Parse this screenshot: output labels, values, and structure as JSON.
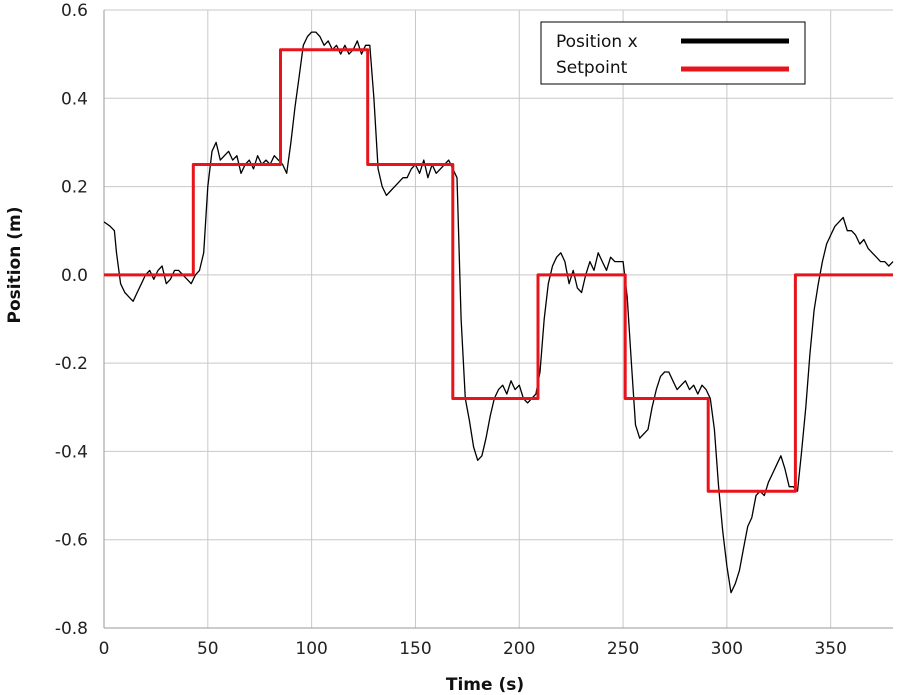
{
  "chart_data": {
    "type": "line",
    "title": "",
    "xlabel": "Time (s)",
    "ylabel": "Position (m)",
    "xlim": [
      0,
      380
    ],
    "ylim": [
      -0.8,
      0.6
    ],
    "x_ticks": [
      0,
      50,
      100,
      150,
      200,
      250,
      300,
      350
    ],
    "x_tick_labels": [
      "0",
      "50",
      "100",
      "150",
      "200",
      "250",
      "300",
      "350"
    ],
    "y_ticks": [
      0.6,
      0.4,
      0.2,
      0.0,
      -0.2,
      -0.4,
      -0.6,
      -0.8
    ],
    "y_tick_labels": [
      "0.6",
      "0.4",
      "0.2",
      "0.0",
      "-0.2",
      "-0.4",
      "-0.6",
      "-0.8"
    ],
    "grid": true,
    "legend_position": "top-right",
    "series": [
      {
        "name": "Position x",
        "color": "#000000",
        "points": [
          [
            0,
            0.12
          ],
          [
            3,
            0.11
          ],
          [
            5,
            0.1
          ],
          [
            6,
            0.05
          ],
          [
            8,
            -0.02
          ],
          [
            10,
            -0.04
          ],
          [
            12,
            -0.05
          ],
          [
            14,
            -0.06
          ],
          [
            16,
            -0.04
          ],
          [
            18,
            -0.02
          ],
          [
            20,
            0.0
          ],
          [
            22,
            0.01
          ],
          [
            24,
            -0.01
          ],
          [
            26,
            0.01
          ],
          [
            28,
            0.02
          ],
          [
            30,
            -0.02
          ],
          [
            32,
            -0.01
          ],
          [
            34,
            0.01
          ],
          [
            36,
            0.01
          ],
          [
            38,
            0.0
          ],
          [
            40,
            -0.01
          ],
          [
            42,
            -0.02
          ],
          [
            44,
            0.0
          ],
          [
            46,
            0.01
          ],
          [
            48,
            0.05
          ],
          [
            50,
            0.2
          ],
          [
            52,
            0.28
          ],
          [
            54,
            0.3
          ],
          [
            56,
            0.26
          ],
          [
            58,
            0.27
          ],
          [
            60,
            0.28
          ],
          [
            62,
            0.26
          ],
          [
            64,
            0.27
          ],
          [
            66,
            0.23
          ],
          [
            68,
            0.25
          ],
          [
            70,
            0.26
          ],
          [
            72,
            0.24
          ],
          [
            74,
            0.27
          ],
          [
            76,
            0.25
          ],
          [
            78,
            0.26
          ],
          [
            80,
            0.25
          ],
          [
            82,
            0.27
          ],
          [
            84,
            0.26
          ],
          [
            86,
            0.25
          ],
          [
            88,
            0.23
          ],
          [
            90,
            0.3
          ],
          [
            92,
            0.38
          ],
          [
            94,
            0.45
          ],
          [
            96,
            0.52
          ],
          [
            98,
            0.54
          ],
          [
            100,
            0.55
          ],
          [
            102,
            0.55
          ],
          [
            104,
            0.54
          ],
          [
            106,
            0.52
          ],
          [
            108,
            0.53
          ],
          [
            110,
            0.51
          ],
          [
            112,
            0.52
          ],
          [
            114,
            0.5
          ],
          [
            116,
            0.52
          ],
          [
            118,
            0.5
          ],
          [
            120,
            0.51
          ],
          [
            122,
            0.53
          ],
          [
            124,
            0.5
          ],
          [
            126,
            0.52
          ],
          [
            128,
            0.52
          ],
          [
            130,
            0.4
          ],
          [
            132,
            0.24
          ],
          [
            134,
            0.2
          ],
          [
            136,
            0.18
          ],
          [
            138,
            0.19
          ],
          [
            140,
            0.2
          ],
          [
            142,
            0.21
          ],
          [
            144,
            0.22
          ],
          [
            146,
            0.22
          ],
          [
            148,
            0.24
          ],
          [
            150,
            0.25
          ],
          [
            152,
            0.23
          ],
          [
            154,
            0.26
          ],
          [
            156,
            0.22
          ],
          [
            158,
            0.25
          ],
          [
            160,
            0.23
          ],
          [
            162,
            0.24
          ],
          [
            164,
            0.25
          ],
          [
            166,
            0.26
          ],
          [
            168,
            0.24
          ],
          [
            170,
            0.22
          ],
          [
            172,
            -0.1
          ],
          [
            174,
            -0.28
          ],
          [
            176,
            -0.33
          ],
          [
            178,
            -0.39
          ],
          [
            180,
            -0.42
          ],
          [
            182,
            -0.41
          ],
          [
            184,
            -0.37
          ],
          [
            186,
            -0.32
          ],
          [
            188,
            -0.28
          ],
          [
            190,
            -0.26
          ],
          [
            192,
            -0.25
          ],
          [
            194,
            -0.27
          ],
          [
            196,
            -0.24
          ],
          [
            198,
            -0.26
          ],
          [
            200,
            -0.25
          ],
          [
            202,
            -0.28
          ],
          [
            204,
            -0.29
          ],
          [
            206,
            -0.28
          ],
          [
            208,
            -0.27
          ],
          [
            210,
            -0.22
          ],
          [
            212,
            -0.1
          ],
          [
            214,
            -0.02
          ],
          [
            216,
            0.02
          ],
          [
            218,
            0.04
          ],
          [
            220,
            0.05
          ],
          [
            222,
            0.03
          ],
          [
            224,
            -0.02
          ],
          [
            226,
            0.01
          ],
          [
            228,
            -0.03
          ],
          [
            230,
            -0.04
          ],
          [
            232,
            0.0
          ],
          [
            234,
            0.03
          ],
          [
            236,
            0.01
          ],
          [
            238,
            0.05
          ],
          [
            240,
            0.03
          ],
          [
            242,
            0.01
          ],
          [
            244,
            0.04
          ],
          [
            246,
            0.03
          ],
          [
            248,
            0.03
          ],
          [
            250,
            0.03
          ],
          [
            252,
            -0.05
          ],
          [
            254,
            -0.2
          ],
          [
            256,
            -0.34
          ],
          [
            258,
            -0.37
          ],
          [
            260,
            -0.36
          ],
          [
            262,
            -0.35
          ],
          [
            264,
            -0.3
          ],
          [
            266,
            -0.26
          ],
          [
            268,
            -0.23
          ],
          [
            270,
            -0.22
          ],
          [
            272,
            -0.22
          ],
          [
            274,
            -0.24
          ],
          [
            276,
            -0.26
          ],
          [
            278,
            -0.25
          ],
          [
            280,
            -0.24
          ],
          [
            282,
            -0.26
          ],
          [
            284,
            -0.25
          ],
          [
            286,
            -0.27
          ],
          [
            288,
            -0.25
          ],
          [
            290,
            -0.26
          ],
          [
            292,
            -0.28
          ],
          [
            294,
            -0.35
          ],
          [
            296,
            -0.48
          ],
          [
            298,
            -0.58
          ],
          [
            300,
            -0.66
          ],
          [
            302,
            -0.72
          ],
          [
            304,
            -0.7
          ],
          [
            306,
            -0.67
          ],
          [
            308,
            -0.62
          ],
          [
            310,
            -0.57
          ],
          [
            312,
            -0.55
          ],
          [
            314,
            -0.5
          ],
          [
            316,
            -0.49
          ],
          [
            318,
            -0.5
          ],
          [
            320,
            -0.47
          ],
          [
            322,
            -0.45
          ],
          [
            324,
            -0.43
          ],
          [
            326,
            -0.41
          ],
          [
            328,
            -0.44
          ],
          [
            330,
            -0.48
          ],
          [
            332,
            -0.48
          ],
          [
            334,
            -0.49
          ],
          [
            336,
            -0.4
          ],
          [
            338,
            -0.3
          ],
          [
            340,
            -0.18
          ],
          [
            342,
            -0.08
          ],
          [
            344,
            -0.02
          ],
          [
            346,
            0.03
          ],
          [
            348,
            0.07
          ],
          [
            350,
            0.09
          ],
          [
            352,
            0.11
          ],
          [
            354,
            0.12
          ],
          [
            356,
            0.13
          ],
          [
            358,
            0.1
          ],
          [
            360,
            0.1
          ],
          [
            362,
            0.09
          ],
          [
            364,
            0.07
          ],
          [
            366,
            0.08
          ],
          [
            368,
            0.06
          ],
          [
            370,
            0.05
          ],
          [
            372,
            0.04
          ],
          [
            374,
            0.03
          ],
          [
            376,
            0.03
          ],
          [
            378,
            0.02
          ],
          [
            380,
            0.03
          ]
        ]
      },
      {
        "name": "Setpoint",
        "color": "#e8141c",
        "points": [
          [
            0,
            0.0
          ],
          [
            43,
            0.0
          ],
          [
            43,
            0.25
          ],
          [
            85,
            0.25
          ],
          [
            85,
            0.51
          ],
          [
            127,
            0.51
          ],
          [
            127,
            0.25
          ],
          [
            168,
            0.25
          ],
          [
            168,
            -0.28
          ],
          [
            209,
            -0.28
          ],
          [
            209,
            0.0
          ],
          [
            251,
            0.0
          ],
          [
            251,
            -0.28
          ],
          [
            291,
            -0.28
          ],
          [
            291,
            -0.49
          ],
          [
            333,
            -0.49
          ],
          [
            333,
            0.0
          ],
          [
            380,
            0.0
          ]
        ]
      }
    ]
  }
}
